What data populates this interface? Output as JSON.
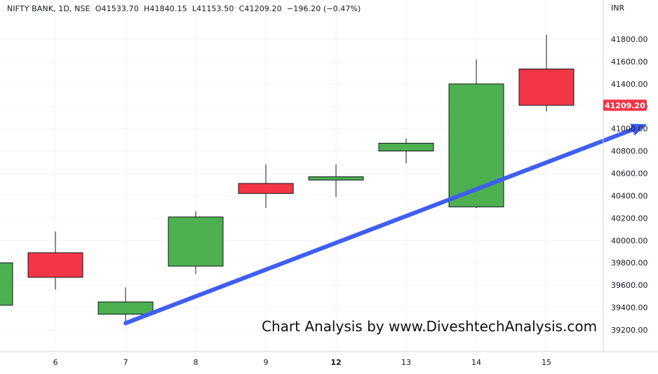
{
  "legend": {
    "symbol": "NIFTY BANK, 1D, NSE",
    "open": "O41533.70",
    "high": "H41840.15",
    "low": "L41153.50",
    "close": "C41209.20",
    "change": "−196.20 (−0.47%)"
  },
  "currency_label": "INR",
  "watermark": "Chart Analysis by www.DiveshtechAnalysis.com",
  "colors": {
    "up": "#4caf50",
    "down": "#f23645",
    "arrow": "#3f5ff0",
    "price_tag": "#f23645",
    "grid": "#f0f3fa"
  },
  "chart_data": {
    "type": "candlestick",
    "x_tick_labels": [
      "6",
      "7",
      "8",
      "9",
      "12",
      "13",
      "14",
      "15"
    ],
    "y_ticks": [
      39200,
      39400,
      39600,
      39800,
      40000,
      40200,
      40400,
      40600,
      40800,
      41000,
      41200,
      41400,
      41600,
      41800
    ],
    "y_tick_labels": [
      "39200.00",
      "39400.00",
      "39600.00",
      "39800.00",
      "40000.00",
      "40200.00",
      "40400.00",
      "40600.00",
      "40800.00",
      "41000.00",
      "41200.00",
      "41400.00",
      "41600.00",
      "41800.00"
    ],
    "ylim": [
      39000,
      42050
    ],
    "last_price": 41209.2,
    "last_price_label": "41209.20",
    "partial_candle": {
      "open": 39420,
      "close": 39800,
      "high": 39800,
      "low": 39420
    },
    "candles": [
      {
        "date": "6",
        "open": 39890,
        "high": 40080,
        "low": 39560,
        "close": 39670
      },
      {
        "date": "7",
        "open": 39340,
        "high": 39580,
        "low": 39250,
        "close": 39450
      },
      {
        "date": "8",
        "open": 39770,
        "high": 40260,
        "low": 39700,
        "close": 40210
      },
      {
        "date": "9",
        "open": 40510,
        "high": 40680,
        "low": 40290,
        "close": 40420
      },
      {
        "date": "12",
        "open": 40540,
        "high": 40680,
        "low": 40390,
        "close": 40570
      },
      {
        "date": "13",
        "open": 40800,
        "high": 40910,
        "low": 40690,
        "close": 40870
      },
      {
        "date": "14",
        "open": 40300,
        "high": 41620,
        "low": 40290,
        "close": 41400
      },
      {
        "date": "15",
        "open": 41533.7,
        "high": 41840.15,
        "low": 41153.5,
        "close": 41209.2
      }
    ],
    "trend_arrow": {
      "from": {
        "date": "7",
        "price": 39260
      },
      "to": {
        "date": "after-15",
        "price": 41040
      }
    }
  }
}
